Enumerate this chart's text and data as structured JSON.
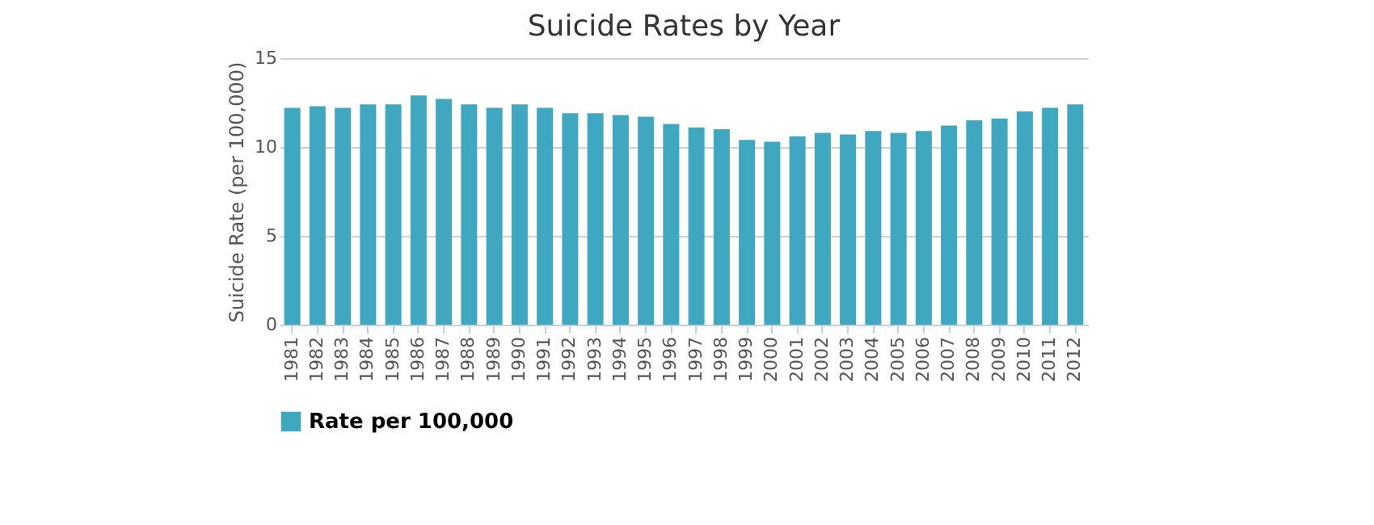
{
  "chart_data": {
    "type": "bar",
    "title": "Suicide Rates by Year",
    "ylabel": "Suicide Rate (per 100,000)",
    "categories": [
      "1981",
      "1982",
      "1983",
      "1984",
      "1985",
      "1986",
      "1987",
      "1988",
      "1989",
      "1990",
      "1991",
      "1992",
      "1993",
      "1994",
      "1995",
      "1996",
      "1997",
      "1998",
      "1999",
      "2000",
      "2001",
      "2002",
      "2003",
      "2004",
      "2005",
      "2006",
      "2007",
      "2008",
      "2009",
      "2010",
      "2011",
      "2012"
    ],
    "series": [
      {
        "name": "Rate per 100,000",
        "color": "#3fa7c0",
        "values": [
          12.2,
          12.3,
          12.2,
          12.4,
          12.4,
          12.9,
          12.7,
          12.4,
          12.2,
          12.4,
          12.2,
          11.9,
          11.9,
          11.8,
          11.7,
          11.3,
          11.1,
          11.0,
          10.4,
          10.3,
          10.6,
          10.8,
          10.7,
          10.9,
          10.8,
          10.9,
          11.2,
          11.5,
          11.6,
          12.0,
          12.2,
          12.4
        ]
      }
    ],
    "ylim": [
      0,
      15
    ],
    "yticks": [
      0,
      5,
      10,
      15
    ],
    "grid": "y",
    "legend": "bottom"
  }
}
